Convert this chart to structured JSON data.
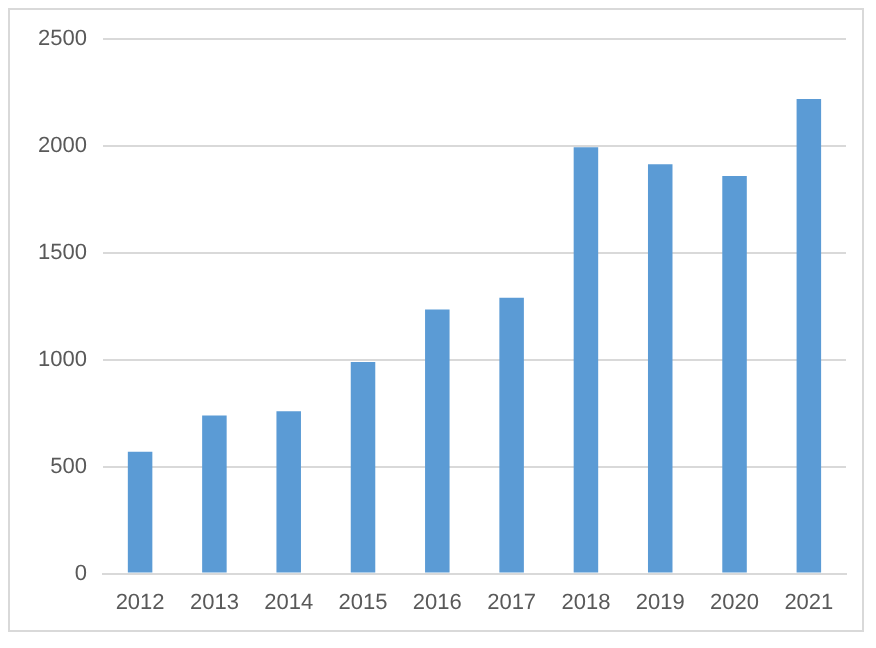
{
  "chart_data": {
    "type": "bar",
    "categories": [
      "2012",
      "2013",
      "2014",
      "2015",
      "2016",
      "2017",
      "2018",
      "2019",
      "2020",
      "2021"
    ],
    "values": [
      570,
      740,
      760,
      990,
      1235,
      1290,
      1995,
      1915,
      1860,
      2220
    ],
    "color": "#5b9bd5",
    "ylim": [
      0,
      2500
    ],
    "yticks": [
      0,
      500,
      1000,
      1500,
      2000,
      2500
    ],
    "grid": "y",
    "legend": false
  }
}
